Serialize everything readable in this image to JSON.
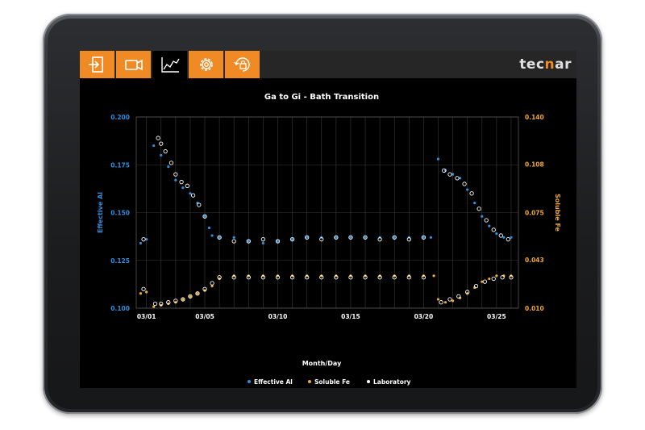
{
  "toolbar": {
    "buttons": [
      {
        "name": "exit-button",
        "icon": "exit-icon",
        "active": false
      },
      {
        "name": "camera-button",
        "icon": "video-camera-icon",
        "active": false
      },
      {
        "name": "chart-button",
        "icon": "line-chart-icon",
        "active": true
      },
      {
        "name": "settings-button",
        "icon": "gear-icon",
        "active": false
      },
      {
        "name": "lock-rotation-button",
        "icon": "lock-rotate-icon",
        "active": false
      }
    ],
    "brand_pre": "tec",
    "brand_mid": "n",
    "brand_post": "ar"
  },
  "colors": {
    "accent": "#f08a24",
    "al_series": "#2f8fe0",
    "fe_series": "#f0a830",
    "lab_series": "#ffffff",
    "background": "#000000"
  },
  "chart_data": {
    "type": "scatter",
    "title": "Ga to Gi - Bath Transition",
    "xlabel": "Month/Day",
    "ylabel_left": "Effective Al",
    "ylabel_right": "Soluble Fe",
    "x_ticks": [
      "03/01",
      "03/05",
      "03/10",
      "03/15",
      "03/20",
      "03/25"
    ],
    "x_tick_days": [
      1,
      5,
      10,
      15,
      20,
      25
    ],
    "xlim_days": [
      0.3,
      26.5
    ],
    "ylim_left": [
      0.1,
      0.2
    ],
    "y_ticks_left": [
      "0.100",
      "0.125",
      "0.150",
      "0.175",
      "0.200"
    ],
    "y_tick_values_left": [
      0.1,
      0.125,
      0.15,
      0.175,
      0.2
    ],
    "ylim_right": [
      0.01,
      0.14
    ],
    "y_ticks_right": [
      "0.010",
      "0.043",
      "0.075",
      "0.108",
      "0.140"
    ],
    "y_tick_values_right": [
      0.01,
      0.043,
      0.075,
      0.108,
      0.14
    ],
    "grid": true,
    "legend_placement": "bottom-center",
    "legend": [
      "Effective Al",
      "Soluble Fe",
      "Laboratory"
    ],
    "series": [
      {
        "name": "Effective Al",
        "axis": "left",
        "x": [
          0.6,
          1.0,
          1.5,
          2.0,
          2.5,
          3.0,
          3.5,
          4.0,
          4.5,
          5.0,
          5.3,
          5.5,
          6.0,
          7.0,
          8.0,
          9.0,
          10.0,
          11.0,
          12.0,
          13.0,
          14.0,
          15.0,
          16.0,
          17.0,
          18.0,
          19.0,
          20.0,
          20.5,
          21.0,
          21.5,
          22.0,
          22.5,
          23.0,
          23.5,
          24.0,
          24.5,
          25.0,
          25.5,
          26.0
        ],
        "y": [
          0.134,
          0.136,
          0.185,
          0.18,
          0.174,
          0.167,
          0.163,
          0.16,
          0.155,
          0.148,
          0.142,
          0.138,
          0.137,
          0.137,
          0.135,
          0.134,
          0.135,
          0.136,
          0.137,
          0.137,
          0.137,
          0.137,
          0.137,
          0.137,
          0.137,
          0.137,
          0.137,
          0.137,
          0.178,
          0.172,
          0.17,
          0.168,
          0.162,
          0.155,
          0.148,
          0.143,
          0.139,
          0.137,
          0.137
        ]
      },
      {
        "name": "Soluble Fe",
        "axis": "right",
        "x": [
          0.6,
          1.0,
          1.5,
          2.0,
          2.5,
          3.0,
          3.5,
          4.0,
          4.5,
          5.0,
          5.5,
          6.0,
          7.0,
          8.0,
          9.0,
          10.0,
          11.0,
          12.0,
          13.0,
          14.0,
          15.0,
          16.0,
          17.0,
          18.0,
          19.0,
          20.0,
          20.7,
          21.0,
          21.5,
          22.0,
          22.5,
          23.0,
          23.5,
          24.0,
          24.5,
          25.0,
          25.5,
          26.0
        ],
        "y": [
          0.02,
          0.021,
          0.011,
          0.012,
          0.013,
          0.014,
          0.016,
          0.018,
          0.02,
          0.022,
          0.025,
          0.03,
          0.032,
          0.032,
          0.032,
          0.032,
          0.032,
          0.032,
          0.032,
          0.032,
          0.032,
          0.032,
          0.032,
          0.032,
          0.032,
          0.032,
          0.032,
          0.016,
          0.014,
          0.015,
          0.017,
          0.02,
          0.024,
          0.028,
          0.03,
          0.032,
          0.032,
          0.032
        ]
      },
      {
        "name": "Laboratory",
        "axis": "left",
        "x": [
          0.8,
          1.8,
          2.0,
          2.3,
          2.7,
          3.0,
          3.4,
          3.8,
          4.2,
          4.6,
          5.0,
          6.0,
          7.0,
          8.0,
          9.0,
          10.0,
          11.0,
          12.0,
          13.0,
          14.0,
          15.0,
          16.0,
          17.0,
          18.0,
          19.0,
          20.0,
          21.4,
          21.8,
          22.3,
          22.8,
          23.3,
          23.8,
          24.3,
          24.8,
          25.3,
          25.8
        ],
        "y": [
          0.136,
          0.189,
          0.186,
          0.182,
          0.176,
          0.17,
          0.166,
          0.164,
          0.159,
          0.154,
          0.148,
          0.137,
          0.135,
          0.135,
          0.136,
          0.135,
          0.136,
          0.137,
          0.136,
          0.137,
          0.137,
          0.137,
          0.136,
          0.137,
          0.136,
          0.137,
          0.172,
          0.17,
          0.168,
          0.165,
          0.16,
          0.152,
          0.146,
          0.141,
          0.138,
          0.136
        ]
      },
      {
        "name": "Laboratory",
        "axis": "right",
        "x": [
          0.8,
          1.6,
          2.0,
          2.5,
          3.0,
          3.5,
          4.0,
          4.5,
          5.0,
          5.5,
          6.0,
          7.0,
          8.0,
          9.0,
          10.0,
          11.0,
          12.0,
          13.0,
          14.0,
          15.0,
          16.0,
          17.0,
          18.0,
          19.0,
          20.0,
          21.2,
          21.8,
          22.4,
          23.0,
          23.6,
          24.2,
          24.8,
          25.4,
          26.0
        ],
        "y": [
          0.023,
          0.013,
          0.013,
          0.014,
          0.015,
          0.016,
          0.018,
          0.02,
          0.023,
          0.027,
          0.031,
          0.031,
          0.031,
          0.031,
          0.031,
          0.031,
          0.031,
          0.031,
          0.031,
          0.031,
          0.031,
          0.031,
          0.031,
          0.031,
          0.031,
          0.014,
          0.016,
          0.018,
          0.021,
          0.025,
          0.028,
          0.03,
          0.031,
          0.031
        ]
      }
    ]
  }
}
